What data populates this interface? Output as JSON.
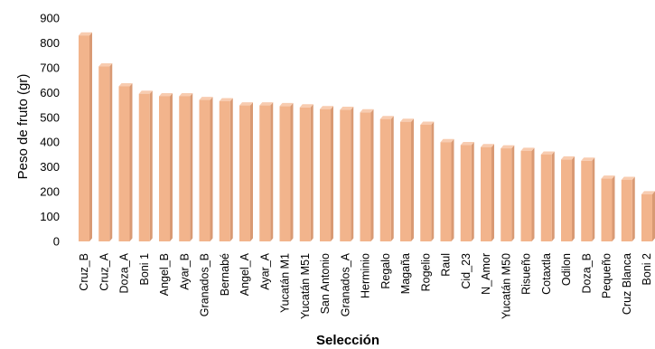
{
  "chart_data": {
    "type": "bar",
    "title": "",
    "xlabel": "Selección",
    "ylabel": "Peso de fruto (gr)",
    "ylim": [
      0,
      900
    ],
    "yticks": [
      0,
      100,
      200,
      300,
      400,
      500,
      600,
      700,
      800,
      900
    ],
    "grid": false,
    "legend": "none",
    "bar_color": "#f2b48c",
    "categories": [
      "Cruz_B",
      "Cruz_A",
      "Doza_A",
      "Boni 1",
      "Angel_B",
      "Ayar_B",
      "Granados_B",
      "Bernabé",
      "Angel_A",
      "Ayar_A",
      "Yucatán M1",
      "Yucatán M51",
      "San Antonio",
      "Granados_A",
      "Herminio",
      "Regalo",
      "Magaña",
      "Rogelio",
      "Raul",
      "Cid_23",
      "N_Amor",
      "Yucatán M50",
      "Risueño",
      "Cotaxtla",
      "Odilon",
      "Doza_B",
      "Pequeño",
      "Cruz Blanca",
      "Boni 2"
    ],
    "values": [
      830,
      705,
      625,
      595,
      585,
      585,
      570,
      565,
      548,
      548,
      545,
      540,
      533,
      530,
      520,
      493,
      482,
      470,
      400,
      388,
      380,
      375,
      365,
      350,
      330,
      325,
      253,
      248,
      190
    ]
  }
}
